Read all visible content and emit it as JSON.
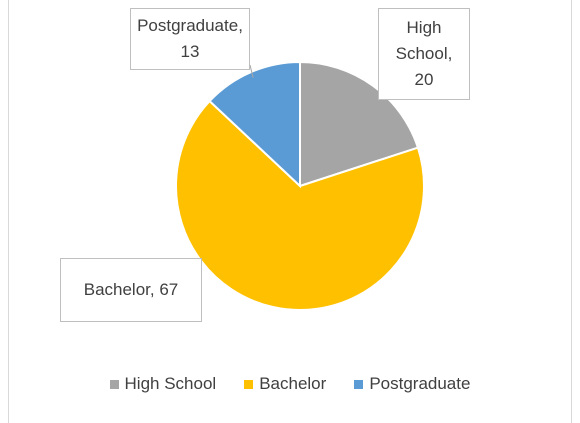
{
  "chart_data": {
    "type": "pie",
    "categories": [
      "High School",
      "Bachelor",
      "Postgraduate"
    ],
    "values": [
      20,
      67,
      13
    ],
    "value_labels": [
      "High School, 20",
      "Bachelor, 67",
      "Postgraduate, 13"
    ],
    "colors": [
      "#a5a5a5",
      "#ffc000",
      "#5b9bd5"
    ],
    "legend": "bottom"
  }
}
